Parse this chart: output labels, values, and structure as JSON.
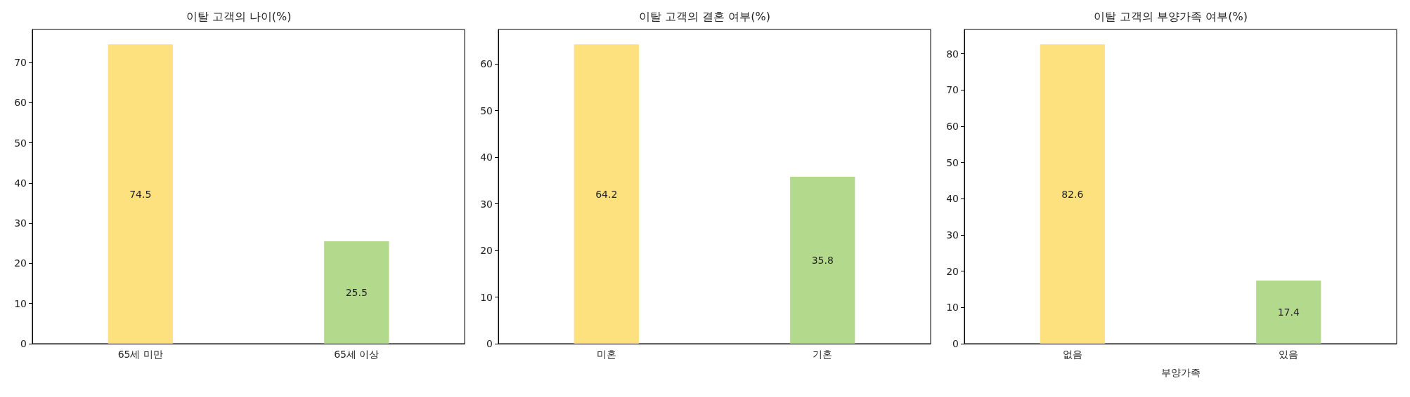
{
  "chart_data": [
    {
      "type": "bar",
      "title": "이탈 고객의 나이(%)",
      "categories": [
        "65세 미만",
        "65세 이상"
      ],
      "colors": [
        "#fee17f",
        "#b3d98c"
      ],
      "values": [
        74.5,
        25.5
      ],
      "ylim": [
        0,
        78.2
      ],
      "yticks": [
        0,
        10,
        20,
        30,
        40,
        50,
        60,
        70
      ],
      "data_labels": true
    },
    {
      "type": "bar",
      "title": "이탈 고객의 결혼 여부(%)",
      "categories": [
        "미혼",
        "기혼"
      ],
      "colors": [
        "#fee17f",
        "#b3d98c"
      ],
      "values": [
        64.2,
        35.8
      ],
      "ylim": [
        0,
        67.4
      ],
      "yticks": [
        0,
        10,
        20,
        30,
        40,
        50,
        60
      ],
      "data_labels": true
    },
    {
      "type": "bar",
      "title": "이탈 고객의 부양가족 여부(%)",
      "xlabel": "부양가족",
      "categories": [
        "없음",
        "있음"
      ],
      "colors": [
        "#fee17f",
        "#b3d98c"
      ],
      "values": [
        82.6,
        17.4
      ],
      "ylim": [
        0,
        86.7
      ],
      "yticks": [
        0,
        10,
        20,
        30,
        40,
        50,
        60,
        70,
        80
      ],
      "data_labels": true
    }
  ]
}
